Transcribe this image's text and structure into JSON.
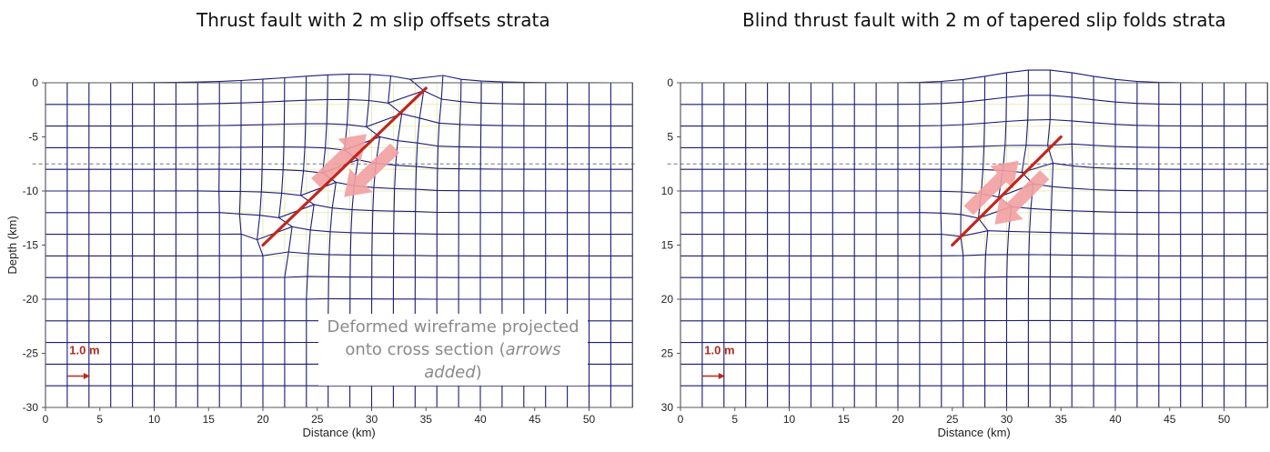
{
  "panels": [
    {
      "id": "left",
      "title": "Thrust fault with 2 m slip offsets strata",
      "xlabel": "Distance (km)",
      "ylabel": "Depth (km)",
      "x_ticks": [
        "0",
        "5",
        "10",
        "15",
        "20",
        "25",
        "30",
        "35",
        "40",
        "45",
        "50"
      ],
      "y_ticks": [
        "0",
        "-5",
        "-10",
        "-15",
        "-20",
        "-25",
        "-30"
      ],
      "scale_label": "1.0 m",
      "fault": {
        "x1_km": 20,
        "z1_km": 15,
        "x2_km": 35,
        "z2_km": 0.5
      },
      "fault_type": "surface-rupturing thrust"
    },
    {
      "id": "right",
      "title": "Blind thrust fault with 2 m of tapered slip folds strata",
      "xlabel": "Distance (km)",
      "ylabel": "",
      "x_ticks": [
        "0",
        "5",
        "10",
        "15",
        "20",
        "25",
        "30",
        "35",
        "40",
        "45",
        "50"
      ],
      "y_ticks": [
        "0",
        "5",
        "10",
        "15",
        "20",
        "25",
        "30"
      ],
      "scale_label": "1.0 m",
      "fault": {
        "x1_km": 25,
        "z1_km": 15,
        "x2_km": 35,
        "z2_km": 5
      },
      "fault_type": "blind thrust"
    }
  ],
  "note": {
    "line1": "Deformed wireframe projected",
    "line2_prefix": "onto cross section (",
    "line2_italic": "arrows added",
    "line2_suffix": ")"
  },
  "colors": {
    "wireframe": "#1c1c7a",
    "grid": "#e8ecb8",
    "fault": "#c0271d",
    "arrows": "#f2a0a0",
    "dashed": "#777777"
  }
}
